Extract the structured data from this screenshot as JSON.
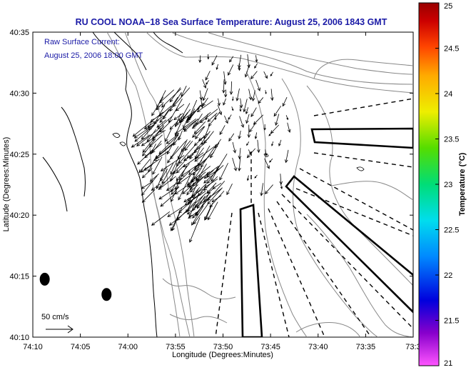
{
  "chart_data": {
    "type": "map",
    "title": "RU COOL  NOAA–18  Sea Surface Temperature:  August 25, 2006 1843 GMT",
    "annotation_lines": [
      "Raw Surface Current:",
      "August 25, 2006 18:00 GMT"
    ],
    "scale_label": "50 cm/s",
    "xlabel": "Longitude (Degrees:Minutes)",
    "ylabel": "Latitude (Degrees:Minutes)",
    "x_tick_labels": [
      "74:10",
      "74:05",
      "74:00",
      "73:55",
      "73:50",
      "73:45",
      "73:40",
      "73:35",
      "73:3"
    ],
    "y_tick_labels": [
      "40:35",
      "40:30",
      "40:25",
      "40:20",
      "40:15",
      "40:10"
    ],
    "xlim_minutes_west": [
      70,
      30
    ],
    "ylim_minutes_north": [
      10,
      35
    ],
    "colorbar": {
      "label": "Temperature (°C)",
      "tick_labels": [
        "25",
        "24.5",
        "24",
        "23.5",
        "23",
        "22.5",
        "22",
        "21.5",
        "21"
      ],
      "range": [
        21,
        25
      ],
      "colors": [
        "#ff55ff",
        "#8800cc",
        "#0000dd",
        "#0088ff",
        "#00ddee",
        "#00dd77",
        "#55dd00",
        "#eeee00",
        "#ffaa00",
        "#ff4400",
        "#cc0000",
        "#990000"
      ]
    },
    "markers": [
      {
        "lon_min": 68.75,
        "lat_min": 14.75
      },
      {
        "lon_min": 62.25,
        "lat_min": 13.5
      }
    ]
  }
}
